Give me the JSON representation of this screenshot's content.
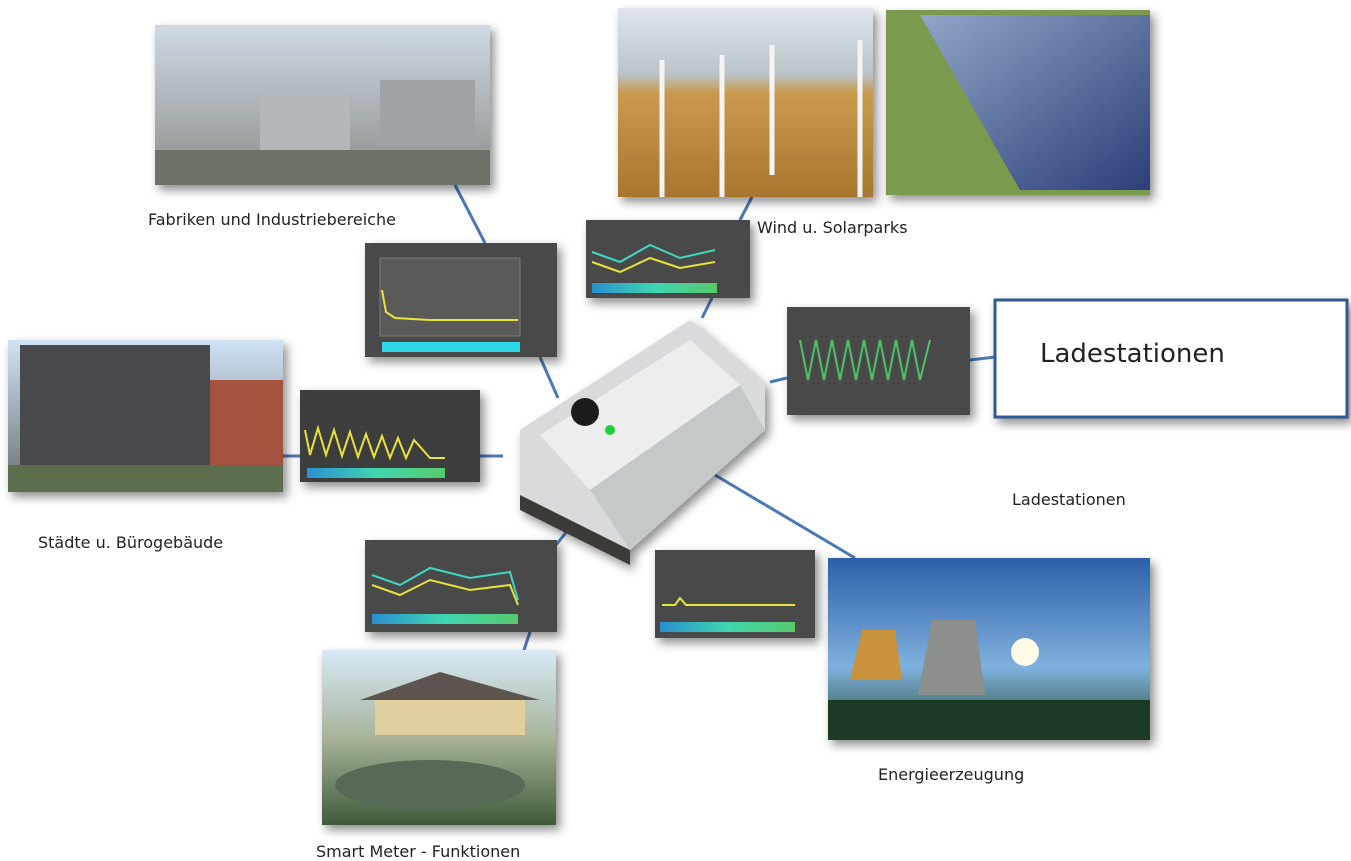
{
  "nodes": [
    {
      "label": "Fabriken und Industriebereiche"
    },
    {
      "label": "Wind u. Solarparks"
    },
    {
      "label": "Städte u. Bürogebäude"
    },
    {
      "label": "Smart Meter - Funktionen"
    },
    {
      "label": "Energieerzeugung"
    },
    {
      "label": "Ladestationen"
    },
    {
      "label": "Ladestationen"
    }
  ]
}
